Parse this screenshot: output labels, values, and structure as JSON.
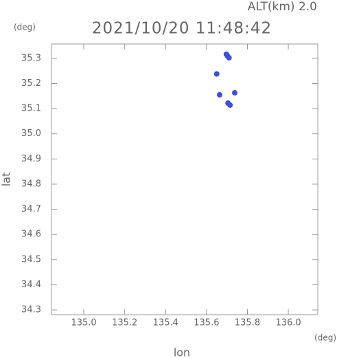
{
  "chart_data": {
    "type": "scatter",
    "title": "2021/10/20 11:48:42",
    "subtitle": "ALT(km) 2.0",
    "y_unit": "(deg)",
    "x_unit": "(deg)",
    "xlabel": "lon",
    "ylabel": "lat",
    "color": "#3a4ee0",
    "x": [
      135.697,
      135.703,
      135.71,
      135.65,
      135.738,
      135.705,
      135.664,
      135.715
    ],
    "values": [
      35.316,
      35.309,
      35.302,
      35.238,
      35.163,
      35.122,
      35.155,
      35.114
    ],
    "xlim": [
      134.842,
      136.144
    ],
    "ylim": [
      34.281,
      35.357
    ],
    "xticks": [
      {
        "value": 135.0,
        "label": "135.0"
      },
      {
        "value": 135.2,
        "label": "135.2"
      },
      {
        "value": 135.4,
        "label": "135.4"
      },
      {
        "value": 135.6,
        "label": "135.6"
      },
      {
        "value": 135.8,
        "label": "135.8"
      },
      {
        "value": 136.0,
        "label": "136.0"
      }
    ],
    "yticks": [
      {
        "value": 34.3,
        "label": "34.3"
      },
      34.4,
      34.5,
      34.6,
      34.7,
      34.8,
      34.9,
      {
        "value": 35.0,
        "label": "35.0"
      },
      35.1,
      35.2,
      35.3
    ]
  }
}
